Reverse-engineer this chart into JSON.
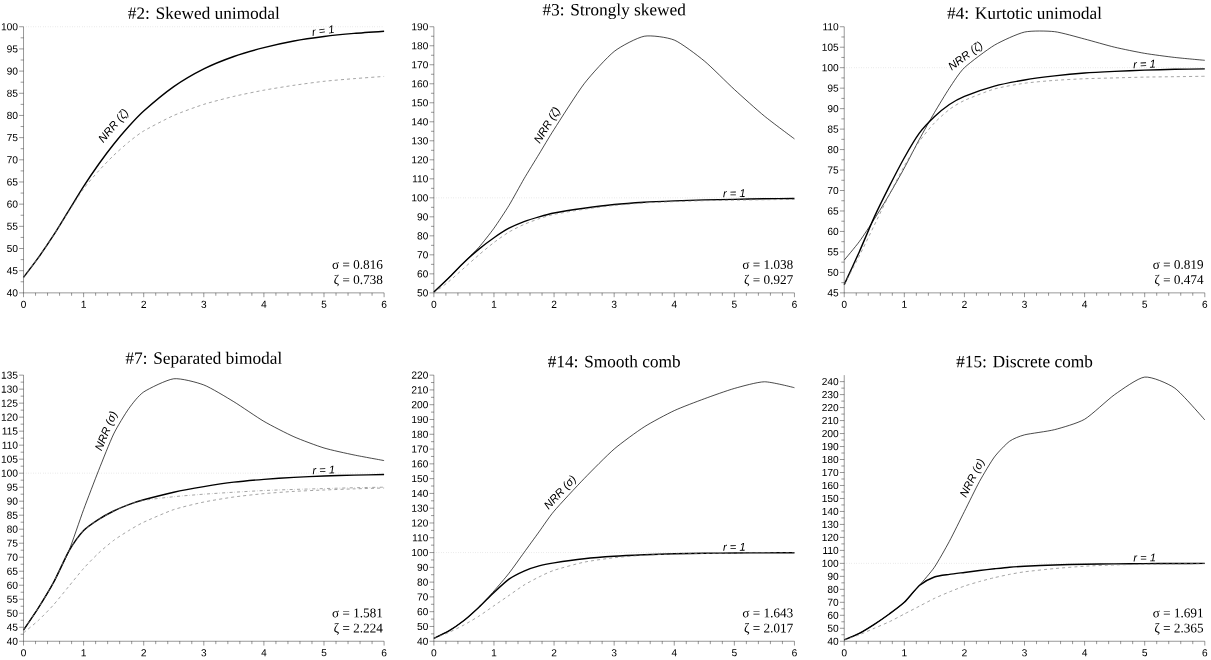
{
  "chart_data": [
    {
      "type": "line",
      "title": "#2: Skewed unimodal",
      "x": [
        0,
        0.25,
        0.5,
        0.75,
        1,
        1.25,
        1.5,
        1.75,
        2,
        2.5,
        3,
        3.5,
        4,
        4.5,
        5,
        5.5,
        6
      ],
      "series": [
        {
          "color": "#000000",
          "line_style": "solid",
          "values": [
            43.5,
            48,
            53,
            58.5,
            64,
            69,
            73.5,
            77.5,
            81,
            86.5,
            90.5,
            93.3,
            95.3,
            96.8,
            97.8,
            98.5,
            99
          ]
        },
        {
          "color": "#808080",
          "line_style": "dashed",
          "values": [
            43.5,
            48,
            53,
            58.3,
            63.5,
            67.5,
            71,
            74,
            76.5,
            80,
            82.5,
            84.3,
            85.7,
            86.8,
            87.7,
            88.3,
            88.8
          ]
        }
      ],
      "xlim": [
        0,
        6
      ],
      "xticks": [
        0,
        1,
        2,
        3,
        4,
        5,
        6
      ],
      "ylim": [
        40,
        100
      ],
      "yticks": [
        40,
        45,
        50,
        55,
        60,
        65,
        70,
        75,
        80,
        85,
        90,
        95,
        100
      ],
      "ref_lines": [
        {
          "axis": "y",
          "value": 100,
          "color": "#808080",
          "line_style": "dotted"
        }
      ],
      "annotations": [
        {
          "text": "NRR (ζ)",
          "x": 1.6,
          "y": 76.5
        },
        {
          "text": "r = 1",
          "x": 5,
          "y": 97.8
        },
        "σ = 0.816",
        "ζ = 0.738"
      ]
    },
    {
      "type": "line",
      "title": "#3: Strongly skewed",
      "x": [
        0,
        0.25,
        0.5,
        0.75,
        1,
        1.25,
        1.5,
        1.75,
        2,
        2.5,
        3,
        3.5,
        4,
        4.5,
        5,
        5.5,
        6
      ],
      "series": [
        {
          "color": "#000000",
          "line_style": "solid",
          "values": [
            50.5,
            58,
            66,
            74,
            84,
            96,
            110,
            123,
            136,
            160,
            177,
            185,
            183,
            172,
            157,
            143,
            131
          ]
        },
        {
          "color": "#000000",
          "line_style": "solid",
          "values": [
            50.5,
            58,
            66,
            73,
            79,
            84,
            87.5,
            90,
            92,
            94.5,
            96.5,
            97.7,
            98.4,
            98.9,
            99.2,
            99.5,
            99.6
          ]
        },
        {
          "color": "#808080",
          "line_style": "dashed",
          "values": [
            50,
            56,
            63,
            70,
            76.5,
            82,
            86,
            89,
            91.3,
            94,
            96,
            97.3,
            98,
            98.5,
            98.8,
            99,
            99.2
          ]
        }
      ],
      "xlim": [
        0,
        6
      ],
      "xticks": [
        0,
        1,
        2,
        3,
        4,
        5,
        6
      ],
      "ylim": [
        50,
        190
      ],
      "yticks": [
        50,
        60,
        70,
        80,
        90,
        100,
        110,
        120,
        130,
        140,
        150,
        160,
        170,
        180,
        190
      ],
      "ref_lines": [
        {
          "axis": "y",
          "value": 100,
          "color": "#808080",
          "line_style": "dotted"
        }
      ],
      "annotations": [
        {
          "text": "NRR (ζ)",
          "x": 2,
          "y": 136
        },
        {
          "text": "r = 1",
          "x": 5,
          "y": 99.2
        },
        "σ = 1.038",
        "ζ = 0.927"
      ]
    },
    {
      "type": "line",
      "title": "#4: Kurtotic unimodal",
      "x": [
        0,
        0.25,
        0.5,
        0.75,
        1,
        1.25,
        1.5,
        1.75,
        2,
        2.5,
        3,
        3.5,
        4,
        4.5,
        5,
        5.5,
        6
      ],
      "series": [
        {
          "color": "#000000",
          "line_style": "solid",
          "values": [
            53,
            57.5,
            63,
            69,
            75.5,
            82.5,
            89,
            95,
            100,
            105.5,
            108.7,
            108.8,
            107,
            105,
            103.5,
            102.5,
            101.8
          ]
        },
        {
          "color": "#000000",
          "line_style": "solid",
          "values": [
            47,
            55,
            63.5,
            71,
            78,
            84,
            88,
            91,
            93,
            95.5,
            97,
            98,
            98.7,
            99.1,
            99.4,
            99.6,
            99.7
          ]
        },
        {
          "color": "#808080",
          "line_style": "dashed",
          "values": [
            47,
            54,
            61.5,
            69,
            76,
            82,
            86.5,
            89.8,
            92,
            94.8,
            96.2,
            96.9,
            97.3,
            97.5,
            97.7,
            97.8,
            97.9
          ]
        }
      ],
      "xlim": [
        0,
        6
      ],
      "xticks": [
        0,
        1,
        2,
        3,
        4,
        5,
        6
      ],
      "ylim": [
        45,
        110
      ],
      "yticks": [
        45,
        50,
        55,
        60,
        65,
        70,
        75,
        80,
        85,
        90,
        95,
        100,
        105,
        110
      ],
      "ref_lines": [
        {
          "axis": "y",
          "value": 100,
          "color": "#808080",
          "line_style": "dotted"
        }
      ],
      "annotations": [
        {
          "text": "NRR (ζ)",
          "x": 2.1,
          "y": 101.3
        },
        {
          "text": "r = 1",
          "x": 5,
          "y": 99.4
        },
        "σ = 0.819",
        "ζ = 0.474"
      ]
    },
    {
      "type": "line",
      "title": "#7: Separated bimodal",
      "x": [
        0,
        0.25,
        0.5,
        0.75,
        1,
        1.25,
        1.5,
        1.75,
        2,
        2.5,
        3,
        3.5,
        4,
        4.5,
        5,
        5.5,
        6
      ],
      "series": [
        {
          "color": "#000000",
          "line_style": "solid",
          "values": [
            44,
            52,
            61,
            72,
            87,
            101,
            114,
            123,
            129,
            133.7,
            131.5,
            125.5,
            118.5,
            113,
            109,
            106.5,
            104.5
          ]
        },
        {
          "color": "#000000",
          "line_style": "solid",
          "values": [
            44,
            52,
            61,
            72,
            79.5,
            83.5,
            86.5,
            88.8,
            90.5,
            93.2,
            95.2,
            96.8,
            97.8,
            98.5,
            99,
            99.3,
            99.5
          ]
        },
        {
          "color": "#808080",
          "line_style": "dashdot",
          "values": [
            44,
            52,
            61,
            72,
            79.5,
            83.5,
            86.5,
            88.8,
            90.3,
            91.6,
            92.5,
            93.2,
            93.8,
            94.2,
            94.5,
            94.8,
            95
          ]
        },
        {
          "color": "#808080",
          "line_style": "dashed",
          "values": [
            43,
            47.5,
            53,
            59.5,
            66,
            71.5,
            76,
            79.5,
            82.5,
            87,
            89.7,
            91.5,
            92.7,
            93.5,
            94,
            94.4,
            94.7
          ]
        }
      ],
      "xlim": [
        0,
        6
      ],
      "xticks": [
        0,
        1,
        2,
        3,
        4,
        5,
        6
      ],
      "ylim": [
        40,
        135
      ],
      "yticks": [
        40,
        45,
        50,
        55,
        60,
        65,
        70,
        75,
        80,
        85,
        90,
        95,
        100,
        105,
        110,
        115,
        120,
        125,
        130,
        135
      ],
      "ref_lines": [
        {
          "axis": "y",
          "value": 100,
          "color": "#808080",
          "line_style": "dotted"
        }
      ],
      "annotations": [
        {
          "text": "NRR (σ)",
          "x": 1.5,
          "y": 114
        },
        {
          "text": "r = 1",
          "x": 5,
          "y": 99
        },
        "σ = 1.581",
        "ζ = 2.224"
      ]
    },
    {
      "type": "line",
      "title": "#14: Smooth comb",
      "x": [
        0,
        0.25,
        0.5,
        0.75,
        1,
        1.25,
        1.5,
        1.75,
        2,
        2.5,
        3,
        3.5,
        4,
        4.5,
        5,
        5.5,
        6
      ],
      "series": [
        {
          "color": "#000000",
          "line_style": "solid",
          "values": [
            42,
            47,
            54,
            63,
            74,
            86,
            100,
            114,
            128,
            150,
            170,
            185,
            196,
            204,
            211,
            215.5,
            211.5
          ]
        },
        {
          "color": "#000000",
          "line_style": "solid",
          "values": [
            42,
            47,
            54,
            63,
            73,
            82,
            87.5,
            91,
            93,
            95.8,
            97.5,
            98.5,
            99.2,
            99.5,
            99.7,
            99.8,
            99.9
          ]
        },
        {
          "color": "#808080",
          "line_style": "dashed",
          "values": [
            42,
            46,
            51,
            57,
            64,
            71,
            78,
            83.5,
            88,
            93.5,
            96.5,
            98.2,
            99,
            99.4,
            99.6,
            99.7,
            99.8
          ]
        }
      ],
      "xlim": [
        0,
        6
      ],
      "xticks": [
        0,
        1,
        2,
        3,
        4,
        5,
        6
      ],
      "ylim": [
        40,
        220
      ],
      "yticks": [
        40,
        50,
        60,
        70,
        80,
        90,
        100,
        110,
        120,
        130,
        140,
        150,
        160,
        170,
        180,
        190,
        200,
        210,
        220
      ],
      "ref_lines": [
        {
          "axis": "y",
          "value": 100,
          "color": "#808080",
          "line_style": "dotted"
        }
      ],
      "annotations": [
        {
          "text": "NRR (σ)",
          "x": 2.2,
          "y": 137
        },
        {
          "text": "r = 1",
          "x": 5,
          "y": 99.7
        },
        "σ = 1.643",
        "ζ = 2.017"
      ]
    },
    {
      "type": "line",
      "title": "#15: Discrete comb",
      "x": [
        0,
        0.25,
        0.5,
        0.75,
        1,
        1.25,
        1.5,
        1.75,
        2,
        2.25,
        2.5,
        2.75,
        3,
        3.5,
        4,
        4.5,
        5,
        5.5,
        6
      ],
      "series": [
        {
          "color": "#000000",
          "line_style": "solid",
          "values": [
            41,
            46,
            53,
            61,
            70,
            83,
            97,
            117,
            140,
            163,
            182,
            194,
            199,
            203,
            211,
            230,
            243.5,
            235,
            210.5
          ]
        },
        {
          "color": "#000000",
          "line_style": "solid",
          "values": [
            41,
            46,
            53,
            61,
            70,
            83,
            89.5,
            91.5,
            93,
            94.5,
            95.8,
            97,
            97.8,
            98.8,
            99.3,
            99.6,
            99.8,
            99.9,
            100
          ]
        },
        {
          "color": "#808080",
          "line_style": "dashed",
          "values": [
            41,
            45,
            50,
            55,
            61,
            67,
            73,
            78,
            82.5,
            86,
            89,
            91.5,
            93.5,
            96,
            97.8,
            98.8,
            99.3,
            99.6,
            99.8
          ]
        }
      ],
      "xlim": [
        0,
        6
      ],
      "xticks": [
        0,
        1,
        2,
        3,
        4,
        5,
        6
      ],
      "ylim": [
        40,
        245
      ],
      "yticks": [
        40,
        50,
        60,
        70,
        80,
        90,
        100,
        110,
        120,
        130,
        140,
        150,
        160,
        170,
        180,
        190,
        200,
        210,
        220,
        230,
        240
      ],
      "ref_lines": [
        {
          "axis": "y",
          "value": 100,
          "color": "#808080",
          "line_style": "dotted"
        }
      ],
      "annotations": [
        {
          "text": "NRR (σ)",
          "x": 2.25,
          "y": 163
        },
        {
          "text": "r = 1",
          "x": 5,
          "y": 99.8
        },
        "σ = 1.691",
        "ζ = 2.365"
      ]
    }
  ]
}
